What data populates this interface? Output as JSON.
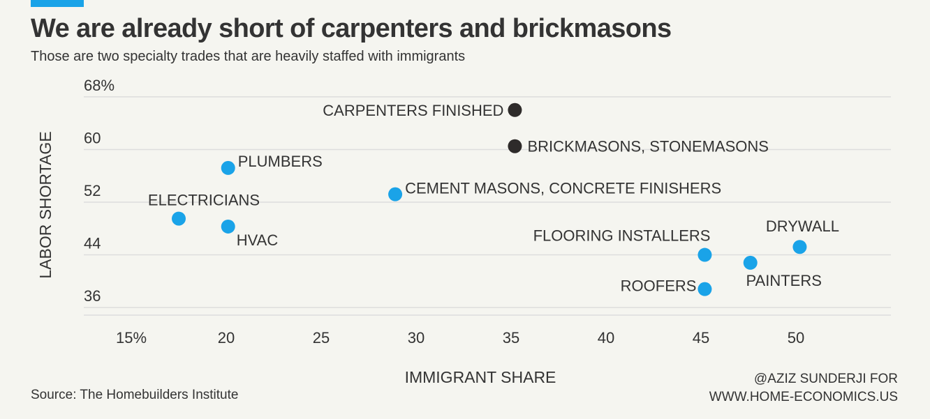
{
  "title": "We are already short of carpenters and brickmasons",
  "subtitle": "Those are two specialty trades that are heavily staffed with immigrants",
  "source": "Source: The Homebuilders Institute",
  "credit_line1": "@AZIZ SUNDERJI FOR",
  "credit_line2": "WWW.HOME-ECONOMICS.US",
  "colors": {
    "accent": "#1aa3e8",
    "highlight": "#2e2b2a",
    "grid": "#dddddd",
    "text": "#333333"
  },
  "chart_data": {
    "type": "scatter",
    "xlabel": "IMMIGRANT SHARE",
    "ylabel": "LABOR SHORTAGE",
    "xlim": [
      12.5,
      55
    ],
    "ylim": [
      34,
      70
    ],
    "x_ticks": [
      15,
      20,
      25,
      30,
      35,
      40,
      45,
      50
    ],
    "x_tick_labels": [
      "15%",
      "20",
      "25",
      "30",
      "35",
      "40",
      "45",
      "50"
    ],
    "y_ticks": [
      36,
      44,
      52,
      60,
      68
    ],
    "y_tick_labels": [
      "36",
      "44",
      "52",
      "60",
      "68%"
    ],
    "grid": "horizontal",
    "points": [
      {
        "label": "CARPENTERS FINISHED",
        "x": 35.2,
        "y": 66,
        "highlight": true
      },
      {
        "label": "BRICKMASONS, STONEMASONS",
        "x": 35.2,
        "y": 60.5,
        "highlight": true
      },
      {
        "label": "PLUMBERS",
        "x": 20.1,
        "y": 57.2,
        "highlight": false
      },
      {
        "label": "CEMENT MASONS, CONCRETE FINISHERS",
        "x": 28.9,
        "y": 53.2,
        "highlight": false
      },
      {
        "label": "ELECTRICIANS",
        "x": 17.5,
        "y": 49.5,
        "highlight": false
      },
      {
        "label": "HVAC",
        "x": 20.1,
        "y": 48.3,
        "highlight": false
      },
      {
        "label": "FLOORING INSTALLERS",
        "x": 45.2,
        "y": 44,
        "highlight": false
      },
      {
        "label": "DRYWALL",
        "x": 50.2,
        "y": 45.2,
        "highlight": false
      },
      {
        "label": "PAINTERS",
        "x": 47.6,
        "y": 42.8,
        "highlight": false
      },
      {
        "label": "ROOFERS",
        "x": 45.2,
        "y": 38.8,
        "highlight": false
      }
    ]
  }
}
